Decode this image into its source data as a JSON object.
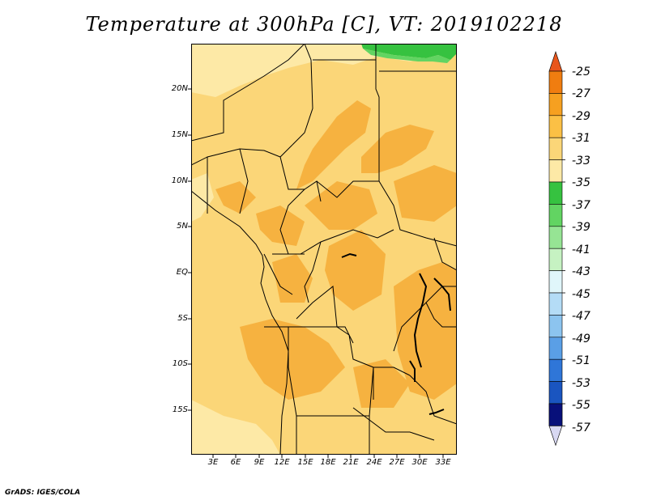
{
  "title": "Temperature at 300hPa [C], VT: 2019102218",
  "credit": "GrADS: IGES/COLA",
  "lat_labels": [
    "20N",
    "15N",
    "10N",
    "5N",
    "EQ",
    "5S",
    "10S",
    "15S"
  ],
  "lon_labels": [
    "3E",
    "6E",
    "9E",
    "12E",
    "15E",
    "18E",
    "21E",
    "24E",
    "27E",
    "30E",
    "33E"
  ],
  "colorbar": {
    "labels": [
      "-25",
      "-27",
      "-29",
      "-31",
      "-33",
      "-35",
      "-37",
      "-39",
      "-41",
      "-43",
      "-45",
      "-47",
      "-49",
      "-51",
      "-53",
      "-55",
      "-57"
    ],
    "colors": [
      "#e8561c",
      "#f07d10",
      "#f6a020",
      "#fbc045",
      "#fbd678",
      "#fde9a6",
      "#36c240",
      "#62d462",
      "#96e494",
      "#c6f2c2",
      "#e0f6fa",
      "#b4dcf6",
      "#8cc4ef",
      "#5a9fe6",
      "#2f76d8",
      "#1a55c0",
      "#0d3a9e",
      "#08107a"
    ],
    "top_triangle_color": "#e8561c",
    "bottom_triangle_color": "#d8d8f2"
  },
  "map": {
    "base_color": "#fbd678",
    "warm_color": "#f6b240",
    "cool_color": "#fde9a6",
    "green_color": "#36c240"
  }
}
